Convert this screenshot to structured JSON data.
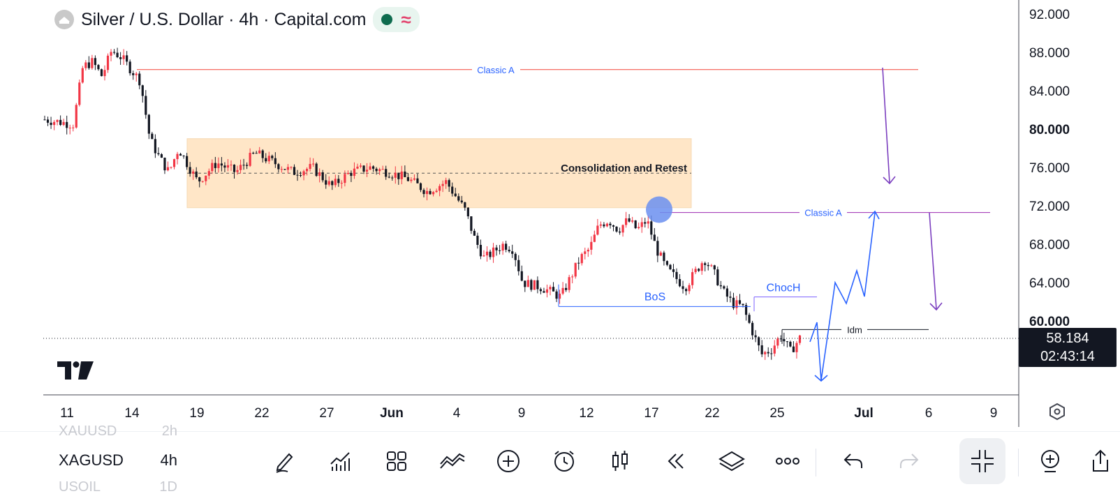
{
  "header": {
    "title": "Silver / U.S. Dollar · 4h · Capital.com",
    "logo_icon": "silver-coin-icon",
    "status_icons": [
      "market-open-dot-icon",
      "wave-icon"
    ]
  },
  "chart_data": {
    "type": "candlestick",
    "symbol": "XAGUSD",
    "interval": "4h",
    "y_axis": {
      "ticks": [
        "92.000",
        "88.000",
        "84.000",
        "80.000",
        "76.000",
        "72.000",
        "68.000",
        "64.000",
        "60.000"
      ],
      "range": [
        54.0,
        93.5
      ]
    },
    "x_axis": {
      "ticks": [
        "11",
        "14",
        "19",
        "22",
        "27",
        "Jun",
        "4",
        "9",
        "12",
        "17",
        "22",
        "25",
        "Jul",
        "6",
        "9"
      ]
    },
    "last_price": "58.184",
    "countdown": "02:43:14",
    "price_path": [
      [
        0,
        81.0
      ],
      [
        3,
        80.5
      ],
      [
        4,
        86.5
      ],
      [
        5,
        87.0
      ],
      [
        6,
        85.5
      ],
      [
        7,
        88.2
      ],
      [
        8,
        87.5
      ],
      [
        10,
        85.0
      ],
      [
        11,
        79.0
      ],
      [
        12,
        77.0
      ],
      [
        13,
        75.5
      ],
      [
        14,
        78.0
      ],
      [
        16,
        74.5
      ],
      [
        18,
        76.5
      ],
      [
        20,
        75.5
      ],
      [
        22,
        77.5
      ],
      [
        24,
        76.5
      ],
      [
        26,
        75.5
      ],
      [
        28,
        76.0
      ],
      [
        30,
        74.0
      ],
      [
        32,
        75.5
      ],
      [
        34,
        76.0
      ],
      [
        36,
        75.5
      ],
      [
        38,
        74.8
      ],
      [
        40,
        73.5
      ],
      [
        42,
        74.5
      ],
      [
        43,
        73.0
      ],
      [
        44,
        71.5
      ],
      [
        45,
        68.5
      ],
      [
        46,
        66.5
      ],
      [
        48,
        68.0
      ],
      [
        49,
        67.5
      ],
      [
        50,
        64.0
      ],
      [
        52,
        63.5
      ],
      [
        54,
        62.5
      ],
      [
        55,
        64.5
      ],
      [
        56,
        66.5
      ],
      [
        57,
        67.5
      ],
      [
        58,
        70.0
      ],
      [
        59,
        70.5
      ],
      [
        60,
        69.5
      ],
      [
        61,
        70.5
      ],
      [
        62,
        69.5
      ],
      [
        63,
        70.5
      ],
      [
        64,
        67.5
      ],
      [
        65,
        65.5
      ],
      [
        66,
        64.5
      ],
      [
        67,
        63.5
      ],
      [
        68,
        65.0
      ],
      [
        69,
        66.5
      ],
      [
        70,
        65.0
      ],
      [
        71,
        63.0
      ],
      [
        72,
        61.8
      ],
      [
        73,
        61.5
      ],
      [
        74,
        59.0
      ],
      [
        75,
        56.5
      ],
      [
        76,
        57.0
      ],
      [
        77,
        58.5
      ],
      [
        78,
        56.8
      ],
      [
        79,
        58.2
      ]
    ],
    "annotations": {
      "classic_a_top": {
        "label": "Classic A",
        "price": 86.2,
        "color": "#f44336"
      },
      "classic_a_mid": {
        "label": "Classic A",
        "price": 71.3,
        "color": "#9c27b0"
      },
      "consolidation": {
        "label": "Consolidation and Retest",
        "price_top": 79.0,
        "price_bottom": 71.8,
        "mid_price": 75.4,
        "color": "#ffe6c7"
      },
      "bos": {
        "label": "BoS",
        "price": 61.5,
        "color": "#2962ff"
      },
      "choch": {
        "label": "ChocH",
        "price": 62.5,
        "color": "#2962ff"
      },
      "idm": {
        "label": "Idm",
        "price": 59.1,
        "color": "#131722"
      },
      "current_price_line": 58.184
    }
  },
  "toolbar": {
    "symbols": [
      {
        "name": "XAUUSD",
        "interval": "2h"
      },
      {
        "name": "XAGUSD",
        "interval": "4h"
      },
      {
        "name": "USOIL",
        "interval": "1D"
      }
    ],
    "icons": [
      "draw-pencil-icon",
      "indicators-icon",
      "layout-grid-icon",
      "chart-type-icon",
      "add-icon",
      "alert-clock-icon",
      "candles-icon",
      "replay-icon",
      "layers-icon",
      "more-icon",
      "undo-icon",
      "redo-icon",
      "collapse-icon",
      "add-compare-icon",
      "share-icon"
    ]
  }
}
